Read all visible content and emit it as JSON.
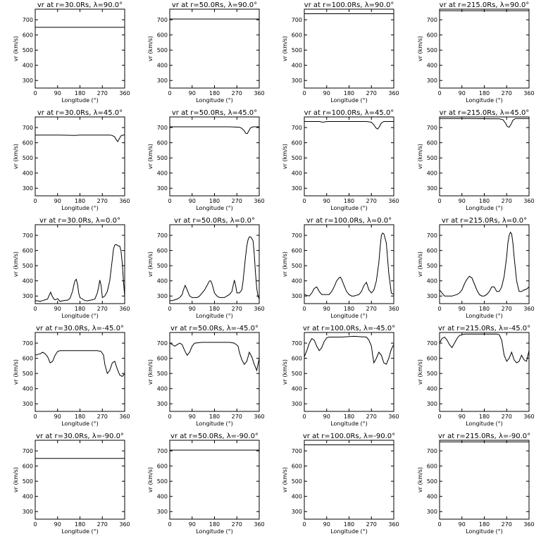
{
  "figure": {
    "layout": "5 rows x 4 columns",
    "line_color": "#000000",
    "background": "#ffffff"
  },
  "chart_data": [
    {
      "type": "line",
      "title": "vr at r=30.0Rs, λ=90.0°",
      "radius": "r=30.0Rs",
      "latitude": "λ=90.0°",
      "xlabel": "Longitude (°)",
      "ylabel": "vr (km/s)",
      "xlim": [
        0,
        360
      ],
      "ylim": [
        250,
        770
      ],
      "xticks": [
        0,
        90,
        180,
        270,
        360
      ],
      "yticks": [
        300,
        400,
        500,
        600,
        700
      ],
      "x": [
        0,
        360
      ],
      "y": [
        650,
        650
      ]
    },
    {
      "type": "line",
      "title": "vr at r=50.0Rs, λ=90.0°",
      "radius": "r=50.0Rs",
      "latitude": "λ=90.0°",
      "xlabel": "Longitude (°)",
      "ylabel": "vr (km/s)",
      "xlim": [
        0,
        360
      ],
      "ylim": [
        250,
        770
      ],
      "xticks": [
        0,
        90,
        180,
        270,
        360
      ],
      "yticks": [
        300,
        400,
        500,
        600,
        700
      ],
      "x": [
        0,
        360
      ],
      "y": [
        705,
        705
      ]
    },
    {
      "type": "line",
      "title": "vr at r=100.0Rs, λ=90.0°",
      "radius": "r=100.0Rs",
      "latitude": "λ=90.0°",
      "xlabel": "Longitude (°)",
      "ylabel": "vr (km/s)",
      "xlim": [
        0,
        360
      ],
      "ylim": [
        250,
        770
      ],
      "xticks": [
        0,
        90,
        180,
        270,
        360
      ],
      "yticks": [
        300,
        400,
        500,
        600,
        700
      ],
      "x": [
        0,
        360
      ],
      "y": [
        740,
        740
      ]
    },
    {
      "type": "line",
      "title": "vr at r=215.0Rs, λ=90.0°",
      "radius": "r=215.0Rs",
      "latitude": "λ=90.0°",
      "xlabel": "Longitude (°)",
      "ylabel": "vr (km/s)",
      "xlim": [
        0,
        360
      ],
      "ylim": [
        250,
        770
      ],
      "xticks": [
        0,
        90,
        180,
        270,
        360
      ],
      "yticks": [
        300,
        400,
        500,
        600,
        700
      ],
      "x": [
        0,
        360
      ],
      "y": [
        760,
        760
      ]
    },
    {
      "type": "line",
      "title": "vr at r=30.0Rs, λ=45.0°",
      "radius": "r=30.0Rs",
      "latitude": "λ=45.0°",
      "xlabel": "Longitude (°)",
      "ylabel": "vr (km/s)",
      "xlim": [
        0,
        360
      ],
      "ylim": [
        250,
        770
      ],
      "xticks": [
        0,
        90,
        180,
        270,
        360
      ],
      "yticks": [
        300,
        400,
        500,
        600,
        700
      ],
      "x": [
        0,
        100,
        160,
        180,
        260,
        300,
        310,
        320,
        326,
        332,
        338,
        345,
        352,
        360
      ],
      "y": [
        650,
        650,
        648,
        650,
        650,
        650,
        648,
        638,
        620,
        607,
        625,
        645,
        650,
        650
      ]
    },
    {
      "type": "line",
      "title": "vr at r=50.0Rs, λ=45.0°",
      "radius": "r=50.0Rs",
      "latitude": "λ=45.0°",
      "xlabel": "Longitude (°)",
      "ylabel": "vr (km/s)",
      "xlim": [
        0,
        360
      ],
      "ylim": [
        250,
        770
      ],
      "xticks": [
        0,
        90,
        180,
        270,
        360
      ],
      "yticks": [
        300,
        400,
        500,
        600,
        700
      ],
      "x": [
        0,
        240,
        280,
        290,
        300,
        306,
        312,
        318,
        325,
        335,
        360
      ],
      "y": [
        705,
        705,
        702,
        695,
        678,
        662,
        660,
        678,
        698,
        705,
        705
      ]
    },
    {
      "type": "line",
      "title": "vr at r=100.0Rs, λ=45.0°",
      "radius": "r=100.0Rs",
      "latitude": "λ=45.0°",
      "xlabel": "Longitude (°)",
      "ylabel": "vr (km/s)",
      "xlim": [
        0,
        360
      ],
      "ylim": [
        250,
        770
      ],
      "xticks": [
        0,
        90,
        180,
        270,
        360
      ],
      "yticks": [
        300,
        400,
        500,
        600,
        700
      ],
      "x": [
        0,
        60,
        75,
        90,
        180,
        250,
        270,
        280,
        288,
        295,
        302,
        310,
        320,
        360
      ],
      "y": [
        740,
        740,
        735,
        740,
        740,
        740,
        735,
        718,
        698,
        690,
        705,
        730,
        740,
        740
      ]
    },
    {
      "type": "line",
      "title": "vr at r=215.0Rs, λ=45.0°",
      "radius": "r=215.0Rs",
      "latitude": "λ=45.0°",
      "xlabel": "Longitude (°)",
      "ylabel": "vr (km/s)",
      "xlim": [
        0,
        360
      ],
      "ylim": [
        250,
        770
      ],
      "xticks": [
        0,
        90,
        180,
        270,
        360
      ],
      "yticks": [
        300,
        400,
        500,
        600,
        700
      ],
      "x": [
        0,
        120,
        200,
        240,
        255,
        265,
        272,
        280,
        288,
        295,
        305,
        360
      ],
      "y": [
        760,
        760,
        758,
        758,
        752,
        730,
        708,
        702,
        722,
        748,
        760,
        760
      ]
    },
    {
      "type": "line",
      "title": "vr at r=30.0Rs, λ=0.0°",
      "radius": "r=30.0Rs",
      "latitude": "λ=0.0°",
      "xlabel": "Longitude (°)",
      "ylabel": "vr (km/s)",
      "xlim": [
        0,
        360
      ],
      "ylim": [
        250,
        770
      ],
      "xticks": [
        0,
        90,
        180,
        270,
        360
      ],
      "yticks": [
        300,
        400,
        500,
        600,
        700
      ],
      "x": [
        0,
        10,
        20,
        30,
        40,
        50,
        55,
        62,
        68,
        75,
        80,
        90,
        100,
        110,
        120,
        130,
        140,
        150,
        155,
        160,
        165,
        170,
        175,
        180,
        190,
        200,
        210,
        220,
        230,
        240,
        250,
        255,
        260,
        265,
        270,
        280,
        290,
        300,
        305,
        310,
        315,
        320,
        325,
        330,
        335,
        340,
        345,
        350,
        355,
        360
      ],
      "y": [
        270,
        268,
        265,
        270,
        275,
        280,
        300,
        325,
        300,
        280,
        275,
        282,
        265,
        268,
        272,
        272,
        285,
        330,
        370,
        400,
        410,
        380,
        320,
        290,
        280,
        270,
        268,
        272,
        275,
        280,
        320,
        360,
        405,
        370,
        290,
        300,
        330,
        400,
        470,
        540,
        610,
        635,
        640,
        635,
        630,
        630,
        600,
        520,
        400,
        300
      ]
    },
    {
      "type": "line",
      "title": "vr at r=50.0Rs, λ=0.0°",
      "radius": "r=50.0Rs",
      "latitude": "λ=0.0°",
      "xlabel": "Longitude (°)",
      "ylabel": "vr (km/s)",
      "xlim": [
        0,
        360
      ],
      "ylim": [
        250,
        770
      ],
      "xticks": [
        0,
        90,
        180,
        270,
        360
      ],
      "yticks": [
        300,
        400,
        500,
        600,
        700
      ],
      "x": [
        0,
        10,
        20,
        30,
        40,
        50,
        55,
        62,
        70,
        80,
        90,
        100,
        110,
        120,
        130,
        140,
        150,
        160,
        165,
        170,
        180,
        190,
        200,
        210,
        220,
        230,
        240,
        250,
        255,
        260,
        265,
        270,
        280,
        290,
        295,
        300,
        305,
        310,
        315,
        320,
        325,
        330,
        335,
        340,
        345,
        350,
        355,
        360
      ],
      "y": [
        270,
        270,
        275,
        280,
        290,
        310,
        340,
        370,
        340,
        300,
        290,
        290,
        290,
        300,
        320,
        340,
        370,
        400,
        400,
        380,
        320,
        300,
        290,
        290,
        290,
        300,
        310,
        330,
        370,
        405,
        370,
        320,
        320,
        340,
        400,
        480,
        560,
        630,
        670,
        690,
        690,
        680,
        665,
        580,
        450,
        350,
        300,
        280
      ]
    },
    {
      "type": "line",
      "title": "vr at r=100.0Rs, λ=0.0°",
      "radius": "r=100.0Rs",
      "latitude": "λ=0.0°",
      "xlabel": "Longitude (°)",
      "ylabel": "vr (km/s)",
      "xlim": [
        0,
        360
      ],
      "ylim": [
        250,
        770
      ],
      "xticks": [
        0,
        90,
        180,
        270,
        360
      ],
      "yticks": [
        300,
        400,
        500,
        600,
        700
      ],
      "x": [
        0,
        10,
        20,
        30,
        40,
        50,
        60,
        70,
        80,
        90,
        100,
        110,
        120,
        130,
        140,
        145,
        150,
        160,
        170,
        180,
        190,
        200,
        210,
        220,
        230,
        240,
        250,
        260,
        270,
        280,
        290,
        300,
        305,
        310,
        315,
        320,
        330,
        340,
        350,
        360
      ],
      "y": [
        310,
        305,
        300,
        320,
        350,
        360,
        330,
        310,
        310,
        310,
        310,
        330,
        360,
        400,
        420,
        425,
        410,
        370,
        330,
        310,
        300,
        300,
        305,
        310,
        330,
        370,
        390,
        340,
        320,
        340,
        400,
        520,
        620,
        700,
        715,
        710,
        650,
        450,
        320,
        310
      ]
    },
    {
      "type": "line",
      "title": "vr at r=215.0Rs, λ=0.0°",
      "radius": "r=215.0Rs",
      "latitude": "λ=0.0°",
      "xlabel": "Longitude (°)",
      "ylabel": "vr (km/s)",
      "xlim": [
        0,
        360
      ],
      "ylim": [
        250,
        770
      ],
      "xticks": [
        0,
        90,
        180,
        270,
        360
      ],
      "yticks": [
        300,
        400,
        500,
        600,
        700
      ],
      "x": [
        0,
        10,
        20,
        30,
        40,
        50,
        60,
        70,
        80,
        90,
        100,
        110,
        120,
        130,
        140,
        150,
        160,
        170,
        180,
        190,
        200,
        210,
        220,
        230,
        240,
        250,
        260,
        270,
        275,
        280,
        285,
        290,
        295,
        300,
        310,
        320,
        330,
        340,
        350,
        360
      ],
      "y": [
        340,
        320,
        300,
        300,
        300,
        300,
        305,
        310,
        320,
        340,
        380,
        410,
        430,
        420,
        380,
        340,
        310,
        300,
        300,
        310,
        330,
        360,
        360,
        330,
        330,
        360,
        430,
        560,
        650,
        700,
        720,
        710,
        650,
        560,
        400,
        330,
        330,
        340,
        345,
        360
      ]
    },
    {
      "type": "line",
      "title": "vr at r=30.0Rs, λ=-45.0°",
      "radius": "r=30.0Rs",
      "latitude": "λ=-45.0°",
      "xlabel": "Longitude (°)",
      "ylabel": "vr (km/s)",
      "xlim": [
        0,
        360
      ],
      "ylim": [
        250,
        770
      ],
      "xticks": [
        0,
        90,
        180,
        270,
        360
      ],
      "yticks": [
        300,
        400,
        500,
        600,
        700
      ],
      "x": [
        0,
        10,
        20,
        30,
        40,
        50,
        60,
        70,
        80,
        90,
        100,
        150,
        200,
        250,
        265,
        275,
        280,
        290,
        300,
        310,
        320,
        330,
        340,
        350,
        360
      ],
      "y": [
        620,
        625,
        630,
        640,
        630,
        610,
        570,
        580,
        620,
        645,
        650,
        650,
        650,
        650,
        645,
        620,
        560,
        500,
        520,
        570,
        580,
        530,
        490,
        480,
        500
      ]
    },
    {
      "type": "line",
      "title": "vr at r=50.0Rs, λ=-45.0°",
      "radius": "r=50.0Rs",
      "latitude": "λ=-45.0°",
      "xlabel": "Longitude (°)",
      "ylabel": "vr (km/s)",
      "xlim": [
        0,
        360
      ],
      "ylim": [
        250,
        770
      ],
      "xticks": [
        0,
        90,
        180,
        270,
        360
      ],
      "yticks": [
        300,
        400,
        500,
        600,
        700
      ],
      "x": [
        0,
        10,
        20,
        30,
        40,
        50,
        60,
        70,
        80,
        90,
        100,
        130,
        180,
        240,
        260,
        275,
        280,
        290,
        300,
        310,
        320,
        330,
        340,
        350,
        360
      ],
      "y": [
        700,
        690,
        680,
        690,
        700,
        690,
        650,
        620,
        640,
        680,
        700,
        705,
        705,
        705,
        700,
        680,
        640,
        590,
        560,
        580,
        640,
        610,
        560,
        520,
        600
      ]
    },
    {
      "type": "line",
      "title": "vr at r=100.0Rs, λ=-45.0°",
      "radius": "r=100.0Rs",
      "latitude": "λ=-45.0°",
      "xlabel": "Longitude (°)",
      "ylabel": "vr (km/s)",
      "xlim": [
        0,
        360
      ],
      "ylim": [
        250,
        770
      ],
      "xticks": [
        0,
        90,
        180,
        270,
        360
      ],
      "yticks": [
        300,
        400,
        500,
        600,
        700
      ],
      "x": [
        0,
        10,
        20,
        30,
        40,
        50,
        60,
        70,
        80,
        90,
        100,
        150,
        200,
        250,
        260,
        270,
        275,
        280,
        290,
        300,
        310,
        320,
        330,
        340,
        350,
        360
      ],
      "y": [
        610,
        650,
        700,
        730,
        720,
        680,
        650,
        670,
        710,
        735,
        740,
        740,
        745,
        740,
        720,
        680,
        620,
        570,
        600,
        640,
        620,
        570,
        560,
        600,
        660,
        690
      ]
    },
    {
      "type": "line",
      "title": "vr at r=215.0Rs, λ=-45.0°",
      "radius": "r=215.0Rs",
      "latitude": "λ=-45.0°",
      "xlabel": "Longitude (°)",
      "ylabel": "vr (km/s)",
      "xlim": [
        0,
        360
      ],
      "ylim": [
        250,
        770
      ],
      "xticks": [
        0,
        90,
        180,
        270,
        360
      ],
      "yticks": [
        300,
        400,
        500,
        600,
        700
      ],
      "x": [
        0,
        10,
        20,
        30,
        40,
        50,
        60,
        70,
        80,
        90,
        100,
        150,
        200,
        230,
        240,
        250,
        260,
        270,
        280,
        290,
        300,
        310,
        320,
        330,
        340,
        350,
        360
      ],
      "y": [
        700,
        730,
        740,
        720,
        690,
        670,
        700,
        730,
        750,
        755,
        760,
        760,
        760,
        760,
        755,
        720,
        620,
        580,
        600,
        640,
        590,
        570,
        580,
        620,
        590,
        580,
        650
      ]
    },
    {
      "type": "line",
      "title": "vr at r=30.0Rs, λ=-90.0°",
      "radius": "r=30.0Rs",
      "latitude": "λ=-90.0°",
      "xlabel": "Longitude (°)",
      "ylabel": "vr (km/s)",
      "xlim": [
        0,
        360
      ],
      "ylim": [
        250,
        770
      ],
      "xticks": [
        0,
        90,
        180,
        270,
        360
      ],
      "yticks": [
        300,
        400,
        500,
        600,
        700
      ],
      "x": [
        0,
        360
      ],
      "y": [
        650,
        650
      ]
    },
    {
      "type": "line",
      "title": "vr at r=50.0Rs, λ=-90.0°",
      "radius": "r=50.0Rs",
      "latitude": "λ=-90.0°",
      "xlabel": "Longitude (°)",
      "ylabel": "vr (km/s)",
      "xlim": [
        0,
        360
      ],
      "ylim": [
        250,
        770
      ],
      "xticks": [
        0,
        90,
        180,
        270,
        360
      ],
      "yticks": [
        300,
        400,
        500,
        600,
        700
      ],
      "x": [
        0,
        360
      ],
      "y": [
        705,
        705
      ]
    },
    {
      "type": "line",
      "title": "vr at r=100.0Rs, λ=-90.0°",
      "radius": "r=100.0Rs",
      "latitude": "λ=-90.0°",
      "xlabel": "Longitude (°)",
      "ylabel": "vr (km/s)",
      "xlim": [
        0,
        360
      ],
      "ylim": [
        250,
        770
      ],
      "xticks": [
        0,
        90,
        180,
        270,
        360
      ],
      "yticks": [
        300,
        400,
        500,
        600,
        700
      ],
      "x": [
        0,
        360
      ],
      "y": [
        740,
        740
      ]
    },
    {
      "type": "line",
      "title": "vr at r=215.0Rs, λ=-90.0°",
      "radius": "r=215.0Rs",
      "latitude": "λ=-90.0°",
      "xlabel": "Longitude (°)",
      "ylabel": "vr (km/s)",
      "xlim": [
        0,
        360
      ],
      "ylim": [
        250,
        770
      ],
      "xticks": [
        0,
        90,
        180,
        270,
        360
      ],
      "yticks": [
        300,
        400,
        500,
        600,
        700
      ],
      "x": [
        0,
        360
      ],
      "y": [
        760,
        760
      ]
    }
  ]
}
